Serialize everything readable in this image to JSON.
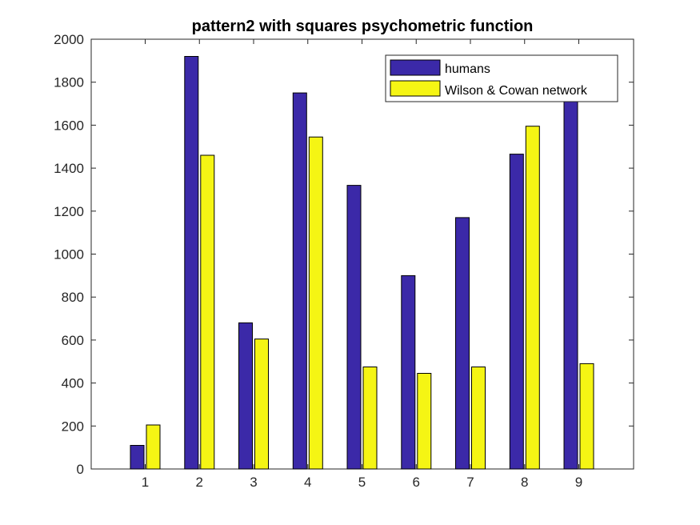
{
  "chart_data": {
    "type": "bar",
    "title": "pattern2 with squares psychometric function",
    "xlabel": "",
    "ylabel": "",
    "categories": [
      "1",
      "2",
      "3",
      "4",
      "5",
      "6",
      "7",
      "8",
      "9"
    ],
    "series": [
      {
        "name": "humans",
        "color": "#3b29a8",
        "values": [
          110,
          1920,
          680,
          1750,
          1320,
          900,
          1170,
          1465,
          1780
        ]
      },
      {
        "name": "Wilson & Cowan network",
        "color": "#f5f514",
        "values": [
          205,
          1460,
          605,
          1545,
          475,
          445,
          475,
          1595,
          490
        ]
      }
    ],
    "ylim": [
      0,
      2000
    ],
    "yticks": [
      "0",
      "200",
      "400",
      "600",
      "800",
      "1000",
      "1200",
      "1400",
      "1600",
      "1800",
      "2000"
    ],
    "grid": false,
    "legend_position": "top-right",
    "legend_box_color": "#ffffff"
  }
}
